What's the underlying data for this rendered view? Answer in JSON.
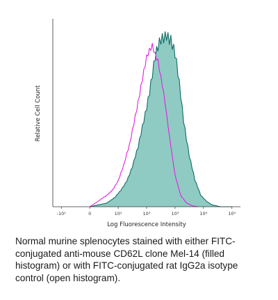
{
  "chart_data": {
    "type": "histogram",
    "xlabel": "Log Fluorescence Intensity",
    "ylabel": "Relative Cell Count",
    "x_scale": "log",
    "xlim": [
      -1.3,
      5.3
    ],
    "ylim": [
      0,
      1
    ],
    "grid": false,
    "x_ticks": [
      {
        "value": -1,
        "label": "-10¹"
      },
      {
        "value": 0,
        "label": "0"
      },
      {
        "value": 1,
        "label": "10¹"
      },
      {
        "value": 2,
        "label": "10²"
      },
      {
        "value": 3,
        "label": "10³"
      },
      {
        "value": 4,
        "label": "10⁴"
      },
      {
        "value": 5,
        "label": "10⁵"
      }
    ],
    "series": [
      {
        "style": "filled",
        "color": "#0e6b66",
        "fill_color": "#8fcbc3",
        "x": [
          0.0,
          0.3,
          0.6,
          0.9,
          1.1,
          1.3,
          1.5,
          1.7,
          1.9,
          2.1,
          2.3,
          2.5,
          2.7,
          2.85,
          3.0,
          3.15,
          3.3,
          3.5,
          3.7,
          3.9,
          4.1,
          4.3,
          4.6,
          5.0
        ],
        "y": [
          0.0,
          0.01,
          0.02,
          0.05,
          0.09,
          0.14,
          0.21,
          0.31,
          0.47,
          0.62,
          0.78,
          0.88,
          0.94,
          0.9,
          0.8,
          0.64,
          0.46,
          0.28,
          0.14,
          0.06,
          0.03,
          0.01,
          0.0,
          0.0
        ]
      },
      {
        "style": "open",
        "color": "#e020e0",
        "x": [
          0.0,
          0.3,
          0.6,
          0.8,
          1.0,
          1.2,
          1.4,
          1.6,
          1.8,
          2.0,
          2.2,
          2.4,
          2.6,
          2.8,
          3.0,
          3.2,
          3.4,
          3.6,
          3.8
        ],
        "y": [
          0.0,
          0.03,
          0.06,
          0.09,
          0.14,
          0.22,
          0.33,
          0.49,
          0.64,
          0.78,
          0.86,
          0.79,
          0.6,
          0.37,
          0.17,
          0.06,
          0.02,
          0.005,
          0.0
        ]
      }
    ]
  },
  "caption": "Normal murine splenocytes stained with either FITC-conjugated anti-mouse CD62L clone Mel-14 (filled histogram) or with FITC-conjugated rat IgG2a isotype control (open histogram)."
}
